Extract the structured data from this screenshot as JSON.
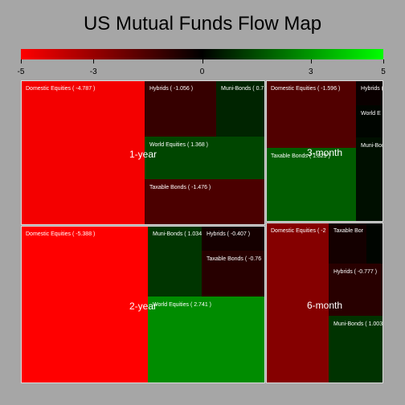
{
  "chart_data": {
    "type": "treemap",
    "title": "US Mutual Funds Flow Map",
    "color_scale": {
      "min": -5,
      "max": 5,
      "colors": [
        "#ff0000",
        "#000000",
        "#00ff00"
      ],
      "ticks": [
        {
          "value": -5,
          "label": "-5"
        },
        {
          "value": -3,
          "label": "-3"
        },
        {
          "value": 0,
          "label": "0"
        },
        {
          "value": 3,
          "label": "3"
        },
        {
          "value": 5,
          "label": "5"
        }
      ]
    },
    "groups": [
      {
        "name": "1-year",
        "cells": [
          {
            "label": "Domestic Equities ( -4.787 )",
            "value": -4.787
          },
          {
            "label": "Hybrids ( -1.056 )",
            "value": -1.056
          },
          {
            "label": "Muni-Bonds ( 0.7",
            "value": 0.7
          },
          {
            "label": "World Equities ( 1.368 )",
            "value": 1.368
          },
          {
            "label": "Taxable Bonds ( -1.476 )",
            "value": -1.476
          }
        ]
      },
      {
        "name": "3-month",
        "cells": [
          {
            "label": "Domestic Equities ( -1.596 )",
            "value": -1.596
          },
          {
            "label": "Hybrids (",
            "value": -0.2
          },
          {
            "label": "World E",
            "value": 0.1
          },
          {
            "label": "Muni-Bonds",
            "value": 0.3
          },
          {
            "label": "Taxable Bonds ( 1.829 )",
            "value": 1.829
          }
        ]
      },
      {
        "name": "2-year",
        "cells": [
          {
            "label": "Domestic Equities ( -5.388 )",
            "value": -5.388
          },
          {
            "label": "Muni-Bonds ( 1.034",
            "value": 1.034
          },
          {
            "label": "Hybrids ( -0.407 )",
            "value": -0.407
          },
          {
            "label": "Taxable Bonds ( -0.76",
            "value": -0.76
          },
          {
            "label": "World Equities ( 2.741 )",
            "value": 2.741
          }
        ]
      },
      {
        "name": "6-month",
        "cells": [
          {
            "label": "Domestic Equities ( -2",
            "value": -2.6
          },
          {
            "label": "Taxable Bor",
            "value": -0.4
          },
          {
            "label": "",
            "value": 0.1
          },
          {
            "label": "Hybrids ( -0.777 )",
            "value": -0.777
          },
          {
            "label": "Muni-Bonds ( 1.003",
            "value": 1.003
          }
        ]
      }
    ]
  }
}
